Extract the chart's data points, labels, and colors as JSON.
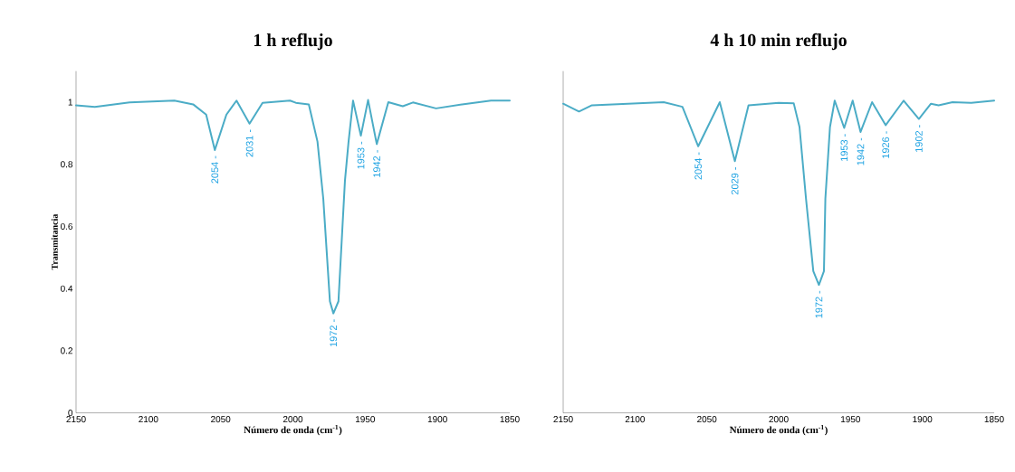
{
  "chart_data": [
    {
      "type": "line",
      "title": "1 h reflujo",
      "xlabel": "Número de onda (cm$^{-1}$)",
      "ylabel": "Transmitancia",
      "color": "#4bacc6",
      "x": [
        2150,
        2137,
        2113,
        2082,
        2069,
        2060,
        2054,
        2046,
        2039,
        2030,
        2021,
        2002,
        1998,
        1989,
        1983,
        1979,
        1974.4,
        1972,
        1968.5,
        1964,
        1961.5,
        1958.4,
        1953,
        1948,
        1942,
        1934,
        1924,
        1917,
        1901,
        1883,
        1863,
        1850
      ],
      "values": [
        0.99,
        0.985,
        0.999,
        1.005,
        0.993,
        0.96,
        0.846,
        0.96,
        1.005,
        0.931,
        0.998,
        1.005,
        0.998,
        0.993,
        0.873,
        0.69,
        0.359,
        0.32,
        0.359,
        0.747,
        0.873,
        1.005,
        0.892,
        1.007,
        0.865,
        1.0,
        0.987,
        0.999,
        0.98,
        0.993,
        1.005,
        1.005
      ],
      "xlim": [
        2150,
        1850
      ],
      "ylim": [
        0,
        1.1
      ],
      "xticks": [
        2150,
        2100,
        2050,
        2000,
        1950,
        1900,
        1850
      ],
      "yticks": [
        0,
        0.2,
        0.4,
        0.6,
        0.8,
        1
      ],
      "annotations": [
        {
          "text": "2054 -",
          "x": 2054,
          "y": 0.846
        },
        {
          "text": "2031 -",
          "x": 2030,
          "y": 0.931
        },
        {
          "text": "1972 -",
          "x": 1972,
          "y": 0.32
        },
        {
          "text": "1953 -",
          "x": 1953,
          "y": 0.892
        },
        {
          "text": "1942 -",
          "x": 1942,
          "y": 0.865
        }
      ]
    },
    {
      "type": "line",
      "title": "4 h 10 min reflujo",
      "xlabel": "Número de onda (cm$^{-1}$)",
      "color": "#4bacc6",
      "tick_labels": "x",
      "x": [
        2150,
        2139,
        2130,
        2080,
        2067,
        2056,
        2041,
        2030.5,
        2021,
        2000,
        1989.5,
        1985.5,
        1981,
        1975.9,
        1972,
        1968.5,
        1967.5,
        1964.3,
        1961,
        1954.4,
        1948.5,
        1943,
        1935,
        1925.5,
        1913,
        1902.4,
        1894,
        1888.7,
        1879,
        1866,
        1850
      ],
      "values": [
        0.995,
        0.97,
        0.99,
        1.0,
        0.985,
        0.858,
        1.0,
        0.81,
        0.99,
        0.998,
        0.996,
        0.92,
        0.69,
        0.456,
        0.412,
        0.456,
        0.69,
        0.92,
        1.005,
        0.917,
        1.005,
        0.904,
        1.0,
        0.926,
        1.005,
        0.946,
        0.995,
        0.99,
        1.0,
        0.998,
        1.005
      ],
      "xlim": [
        2150,
        1850
      ],
      "ylim": [
        0,
        1.1
      ],
      "xticks": [
        2150,
        2100,
        2050,
        2000,
        1950,
        1900,
        1850
      ],
      "yticks": [
        0,
        0.2,
        0.4,
        0.6,
        0.8,
        1
      ],
      "annotations": [
        {
          "text": "2054 -",
          "x": 2056,
          "y": 0.858
        },
        {
          "text": "2029 -",
          "x": 2030.5,
          "y": 0.81
        },
        {
          "text": "1972 -",
          "x": 1972,
          "y": 0.412
        },
        {
          "text": "1953 -",
          "x": 1954.4,
          "y": 0.917
        },
        {
          "text": "1942 -",
          "x": 1943,
          "y": 0.904
        },
        {
          "text": "1926 -",
          "x": 1925.5,
          "y": 0.926
        },
        {
          "text": "1902 -",
          "x": 1902.4,
          "y": 0.946
        }
      ]
    }
  ]
}
